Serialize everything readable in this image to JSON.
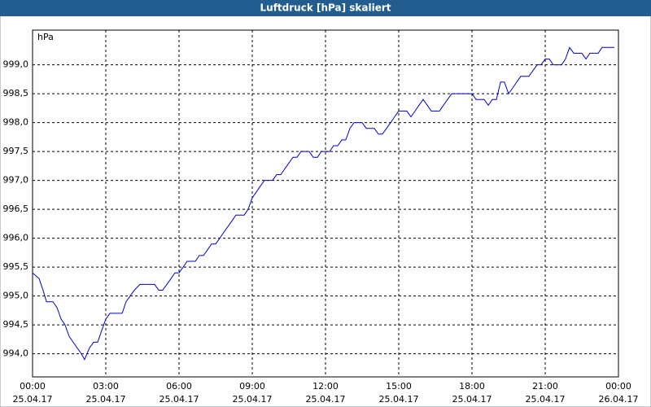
{
  "chart_data": {
    "type": "line",
    "title": "Luftdruck [hPa] skaliert",
    "y_unit": "hPa",
    "x": [
      0,
      0.27,
      0.43,
      0.57,
      0.83,
      1,
      1.17,
      1.33,
      1.5,
      1.83,
      2,
      2.13,
      2.33,
      2.5,
      2.67,
      2.83,
      3,
      3.17,
      3.67,
      3.83,
      4,
      4.17,
      4.4,
      5,
      5.17,
      5.33,
      5.5,
      5.67,
      5.83,
      6,
      6.17,
      6.33,
      6.67,
      6.83,
      7,
      7.17,
      7.33,
      7.5,
      7.67,
      7.83,
      8,
      8.17,
      8.33,
      8.67,
      8.83,
      9,
      9.17,
      9.33,
      9.5,
      9.83,
      10,
      10.17,
      10.33,
      10.5,
      10.67,
      10.83,
      11,
      11.33,
      11.5,
      11.67,
      11.83,
      12.17,
      12.33,
      12.5,
      12.67,
      12.83,
      13,
      13.17,
      13.5,
      13.67,
      14,
      14.17,
      14.33,
      14.5,
      14.67,
      14.83,
      15,
      15.33,
      15.5,
      15.67,
      15.83,
      16,
      16.17,
      16.33,
      16.67,
      16.83,
      17,
      17.17,
      18,
      18.17,
      18.5,
      18.67,
      18.83,
      19,
      19.17,
      19.33,
      19.5,
      19.67,
      19.83,
      20,
      20.33,
      20.5,
      20.67,
      20.83,
      21,
      21.17,
      21.33,
      21.67,
      21.83,
      22,
      22.17,
      22.5,
      22.67,
      22.83,
      23.17,
      23.33,
      23.83
    ],
    "series": [
      {
        "name": "Luftdruck",
        "color": "#0000cc",
        "values": [
          995.4,
          995.3,
          995.1,
          994.9,
          994.9,
          994.8,
          994.6,
          994.5,
          994.3,
          994.1,
          994.0,
          993.9,
          994.1,
          994.2,
          994.2,
          994.4,
          994.6,
          994.7,
          994.7,
          994.9,
          995.0,
          995.1,
          995.2,
          995.2,
          995.1,
          995.1,
          995.2,
          995.3,
          995.4,
          995.4,
          995.5,
          995.6,
          995.6,
          995.7,
          995.7,
          995.8,
          995.9,
          995.9,
          996.0,
          996.1,
          996.2,
          996.3,
          996.4,
          996.4,
          996.5,
          996.7,
          996.8,
          996.9,
          997.0,
          997.0,
          997.1,
          997.1,
          997.2,
          997.3,
          997.4,
          997.4,
          997.5,
          997.5,
          997.4,
          997.4,
          997.5,
          997.5,
          997.6,
          997.6,
          997.7,
          997.7,
          997.9,
          998.0,
          998.0,
          997.9,
          997.9,
          997.8,
          997.8,
          997.9,
          998.0,
          998.1,
          998.2,
          998.2,
          998.1,
          998.2,
          998.3,
          998.4,
          998.3,
          998.2,
          998.2,
          998.3,
          998.4,
          998.5,
          998.5,
          998.4,
          998.4,
          998.3,
          998.4,
          998.4,
          998.7,
          998.7,
          998.5,
          998.6,
          998.7,
          998.8,
          998.8,
          998.9,
          999.0,
          999.0,
          999.1,
          999.1,
          999.0,
          999.0,
          999.1,
          999.3,
          999.2,
          999.2,
          999.1,
          999.2,
          999.2,
          999.3,
          999.3
        ]
      }
    ],
    "xlim": [
      0,
      24
    ],
    "xticks": [
      {
        "value": 0,
        "label": "00:00",
        "date": "25.04.17"
      },
      {
        "value": 3,
        "label": "03:00",
        "date": "25.04.17"
      },
      {
        "value": 6,
        "label": "06:00",
        "date": "25.04.17"
      },
      {
        "value": 9,
        "label": "09:00",
        "date": "25.04.17"
      },
      {
        "value": 12,
        "label": "12:00",
        "date": "25.04.17"
      },
      {
        "value": 15,
        "label": "15:00",
        "date": "25.04.17"
      },
      {
        "value": 18,
        "label": "18:00",
        "date": "25.04.17"
      },
      {
        "value": 21,
        "label": "21:00",
        "date": "25.04.17"
      },
      {
        "value": 24,
        "label": "00:00",
        "date": "26.04.17"
      }
    ],
    "ylim": [
      993.6,
      999.6
    ],
    "yticks": [
      {
        "value": 994,
        "label": "994,0"
      },
      {
        "value": 994.5,
        "label": "994,5"
      },
      {
        "value": 995,
        "label": "995,0"
      },
      {
        "value": 995.5,
        "label": "995,5"
      },
      {
        "value": 996,
        "label": "996,0"
      },
      {
        "value": 996.5,
        "label": "996,5"
      },
      {
        "value": 997,
        "label": "997,0"
      },
      {
        "value": 997.5,
        "label": "997,5"
      },
      {
        "value": 998,
        "label": "998,0"
      },
      {
        "value": 998.5,
        "label": "998,5"
      },
      {
        "value": 999,
        "label": "999,0"
      }
    ],
    "grid": true
  }
}
